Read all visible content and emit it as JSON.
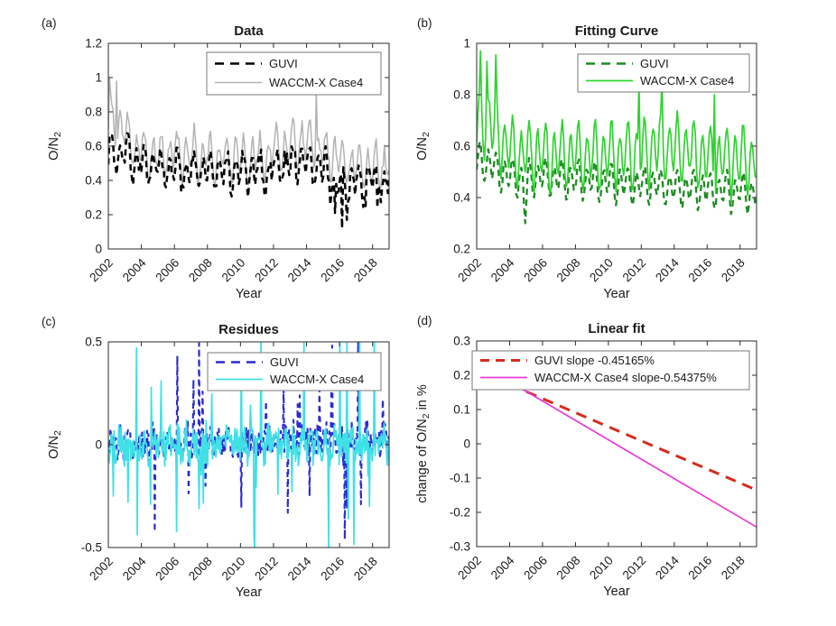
{
  "figure": {
    "bg": "#ffffff",
    "axis_color": "#2b2b2b",
    "legend_border": "#7a7a7a",
    "text_color": "#1a1a1a"
  },
  "chart_data": [
    {
      "id": "a",
      "panel_label": "(a)",
      "title": "Data",
      "type": "line",
      "xlabel": "Year",
      "ylabel": [
        {
          "t": "O/N"
        },
        {
          "t": "2",
          "sub": true
        }
      ],
      "xlim": [
        2002,
        2019
      ],
      "ylim": [
        0,
        1.2
      ],
      "xticks": {
        "values": [
          2002,
          2004,
          2006,
          2008,
          2010,
          2012,
          2014,
          2016,
          2018
        ],
        "labels": [
          "2002",
          "2004",
          "2006",
          "2008",
          "2010",
          "2012",
          "2014",
          "2016",
          "2018"
        ]
      },
      "yticks": {
        "values": [
          0,
          0.2,
          0.4,
          0.6,
          0.8,
          1,
          1.2
        ],
        "labels": [
          "0",
          "0.2",
          "0.4",
          "0.6",
          "0.8",
          "1",
          "1.2"
        ]
      },
      "legend": {
        "entries": [
          {
            "label": "GUVI",
            "color": "#000000",
            "dash": true,
            "width": 2.6
          },
          {
            "label": "WACCM-X Case4",
            "color": "#b3b3b3",
            "dash": false,
            "width": 1.6
          }
        ]
      },
      "series": [
        {
          "name": "WACCM-X Case4",
          "color": "#b3b3b3",
          "width": 1.5,
          "dash": null,
          "gen": {
            "seed": 11,
            "n": 240,
            "base": 0.57,
            "trend": -0.005,
            "annual": 0.05,
            "aph": 0.05,
            "semi": 0.11,
            "sph": 0.2,
            "noise": 0.05,
            "clamp": [
              0.36,
              1.03
            ],
            "bumps": [
              [
                2002.3,
                1.0,
                0.18
              ],
              [
                2013.8,
                1.8,
                0.12
              ]
            ],
            "spikes": [
              [
                2002.05,
                1.0
              ],
              [
                2002.5,
                0.98
              ],
              [
                2014.6,
                0.93
              ]
            ]
          }
        },
        {
          "name": "GUVI",
          "color": "#000000",
          "width": 2.5,
          "dash": "7 5",
          "gen": {
            "seed": 7,
            "n": 240,
            "base": 0.48,
            "trend": -0.004,
            "annual": 0.05,
            "aph": 0.05,
            "semi": 0.08,
            "sph": 0.2,
            "noise": 0.05,
            "clamp": [
              0.11,
              0.83
            ],
            "bumps": [
              [
                2002.6,
                1.2,
                0.1
              ],
              [
                2013.6,
                1.5,
                0.08
              ],
              [
                2016.3,
                0.8,
                -0.06
              ]
            ],
            "spikes": [
              [
                2016.15,
                0.12
              ],
              [
                2016.45,
                0.17
              ],
              [
                2015.7,
                0.21
              ],
              [
                2017.55,
                0.25
              ],
              [
                2018.3,
                0.24
              ]
            ]
          }
        }
      ]
    },
    {
      "id": "b",
      "panel_label": "(b)",
      "title": "Fitting Curve",
      "type": "line",
      "xlabel": "Year",
      "ylabel": [
        {
          "t": "O/N"
        },
        {
          "t": "2",
          "sub": true
        }
      ],
      "xlim": [
        2002,
        2019
      ],
      "ylim": [
        0.2,
        1.0
      ],
      "xticks": {
        "values": [
          2002,
          2004,
          2006,
          2008,
          2010,
          2012,
          2014,
          2016,
          2018
        ],
        "labels": [
          "2002",
          "2004",
          "2006",
          "2008",
          "2010",
          "2012",
          "2014",
          "2016",
          "2018"
        ]
      },
      "yticks": {
        "values": [
          0.2,
          0.4,
          0.6,
          0.8,
          1
        ],
        "labels": [
          "0.2",
          "0.4",
          "0.6",
          "0.8",
          "1"
        ]
      },
      "legend": {
        "entries": [
          {
            "label": "GUVI",
            "color": "#1f8b24",
            "dash": true,
            "width": 2.4
          },
          {
            "label": "WACCM-X Case4",
            "color": "#2fd32f",
            "dash": false,
            "width": 1.8
          }
        ]
      },
      "series": [
        {
          "name": "GUVI",
          "color": "#1f8b24",
          "width": 2.3,
          "dash": "7 5",
          "gen": {
            "seed": 21,
            "n": 220,
            "base": 0.495,
            "trend": -0.0045,
            "annual": 0.025,
            "aph": 0.05,
            "semi": 0.06,
            "sph": 0.2,
            "noise": 0.012,
            "clamp": [
              0.3,
              0.68
            ],
            "bumps": [
              [
                2002.4,
                0.8,
                0.05
              ],
              [
                2004.95,
                0.12,
                -0.13
              ]
            ],
            "spikes": [
              [
                2004.95,
                0.3
              ]
            ]
          }
        },
        {
          "name": "WACCM-X Case4",
          "color": "#2fd32f",
          "width": 1.7,
          "dash": null,
          "gen": {
            "seed": 23,
            "n": 220,
            "base": 0.575,
            "trend": -0.002,
            "annual": 0.04,
            "aph": 0.05,
            "semi": 0.11,
            "sph": 0.2,
            "noise": 0.02,
            "clamp": [
              0.34,
              0.985
            ],
            "bumps": [
              [
                2002.5,
                1.0,
                0.13
              ],
              [
                2013.6,
                1.8,
                0.05
              ]
            ],
            "spikes": [
              [
                2002.2,
                0.97
              ],
              [
                2003.15,
                0.955
              ],
              [
                2002.65,
                0.93
              ],
              [
                2011.85,
                0.85
              ],
              [
                2013.25,
                0.86
              ],
              [
                2016.45,
                0.8
              ]
            ]
          }
        }
      ]
    },
    {
      "id": "c",
      "panel_label": "(c)",
      "title": "Residues",
      "type": "line",
      "xlabel": "Year",
      "ylabel": [
        {
          "t": "O/N"
        },
        {
          "t": "2",
          "sub": true
        }
      ],
      "xlim": [
        2002,
        2019
      ],
      "ylim": [
        -0.5,
        0.5
      ],
      "xticks": {
        "values": [
          2002,
          2004,
          2006,
          2008,
          2010,
          2012,
          2014,
          2016,
          2018
        ],
        "labels": [
          "2002",
          "2004",
          "2006",
          "2008",
          "2010",
          "2012",
          "2014",
          "2016",
          "2018"
        ]
      },
      "yticks": {
        "values": [
          -0.5,
          0,
          0.5
        ],
        "labels": [
          "-0.5",
          "0",
          "0.5"
        ]
      },
      "legend": {
        "entries": [
          {
            "label": "GUVI",
            "color": "#2b2bd0",
            "dash": true,
            "width": 2.4
          },
          {
            "label": "WACCM-X Case4",
            "color": "#3fe0e6",
            "dash": false,
            "width": 1.8
          }
        ]
      },
      "series": [
        {
          "name": "GUVI",
          "color": "#2b2bd0",
          "width": 2.1,
          "dash": "6 5",
          "gen": {
            "seed": 31,
            "n": 400,
            "base": 0.002,
            "trend": 0.0015,
            "annual": 0,
            "aph": 0,
            "semi": 0.02,
            "sph": 0.2,
            "noise": 0.075,
            "heavy": [
              0.05,
              0.15
            ],
            "clamp": [
              -0.5,
              0.5
            ],
            "bumps": [],
            "spikes": [
              [
                2016.3,
                -0.46
              ],
              [
                2016.45,
                -0.31
              ],
              [
                2013.6,
                0.24
              ],
              [
                2014.8,
                0.27
              ],
              [
                2015.5,
                0.3
              ],
              [
                2007.9,
                -0.2
              ],
              [
                2017.3,
                -0.29
              ],
              [
                2018.6,
                0.22
              ],
              [
                2014.2,
                -0.25
              ]
            ]
          }
        },
        {
          "name": "WACCM-X Case4",
          "color": "#3fe0e6",
          "width": 1.7,
          "dash": null,
          "gen": {
            "seed": 37,
            "n": 400,
            "base": 0,
            "trend": 0,
            "annual": 0,
            "aph": 0,
            "semi": 0.03,
            "sph": 0.2,
            "noise": 0.08,
            "heavy": [
              0.06,
              0.18
            ],
            "clamp": [
              -0.52,
              0.55
            ],
            "bumps": [],
            "spikes": [
              [
                2005.2,
                0.31
              ],
              [
                2011.25,
                0.55
              ],
              [
                2016.0,
                0.55
              ],
              [
                2003.2,
                -0.28
              ],
              [
                2007.5,
                -0.31
              ],
              [
                2016.55,
                -0.36
              ],
              [
                2017.8,
                -0.3
              ],
              [
                2002.3,
                -0.25
              ],
              [
                2004.6,
                0.28
              ]
            ]
          }
        }
      ]
    },
    {
      "id": "d",
      "panel_label": "(d)",
      "title": "Linear fit",
      "type": "line",
      "xlabel": "Year",
      "ylabel": [
        {
          "t": "change of O/N"
        },
        {
          "t": "2",
          "sub": true
        },
        {
          "t": " in %"
        }
      ],
      "xlim": [
        2002,
        2019
      ],
      "ylim": [
        -0.3,
        0.3
      ],
      "xticks": {
        "values": [
          2002,
          2004,
          2006,
          2008,
          2010,
          2012,
          2014,
          2016,
          2018
        ],
        "labels": [
          "2002",
          "2004",
          "2006",
          "2008",
          "2010",
          "2012",
          "2014",
          "2016",
          "2018"
        ]
      },
      "yticks": {
        "values": [
          -0.3,
          -0.2,
          -0.1,
          0,
          0.1,
          0.2,
          0.3
        ],
        "labels": [
          "-0.3",
          "-0.2",
          "-0.1",
          "0",
          "0.1",
          "0.2",
          "0.3"
        ]
      },
      "legend": {
        "entries": [
          {
            "label": "GUVI slope -0.45165%",
            "color": "#d62b1f",
            "dash": true,
            "width": 3
          },
          {
            "label": "WACCM-X Case4 slope-0.54375%",
            "color": "#e83bd9",
            "dash": false,
            "width": 1.8
          }
        ]
      },
      "slopes": {
        "guvi_pct": "-0.45165",
        "waccmx_case4_pct": "-0.54375"
      },
      "series": [
        {
          "name": "GUVI slope -0.45165%",
          "color": "#d62b1f",
          "width": 3,
          "dash": "12 8",
          "points": [
            [
              2002,
              0.214
            ],
            [
              2019,
              -0.135
            ]
          ]
        },
        {
          "name": "WACCM-X Case4 slope-0.54375%",
          "color": "#e83bd9",
          "width": 1.7,
          "dash": null,
          "points": [
            [
              2002,
              0.238
            ],
            [
              2019,
              -0.243
            ]
          ]
        }
      ]
    }
  ]
}
